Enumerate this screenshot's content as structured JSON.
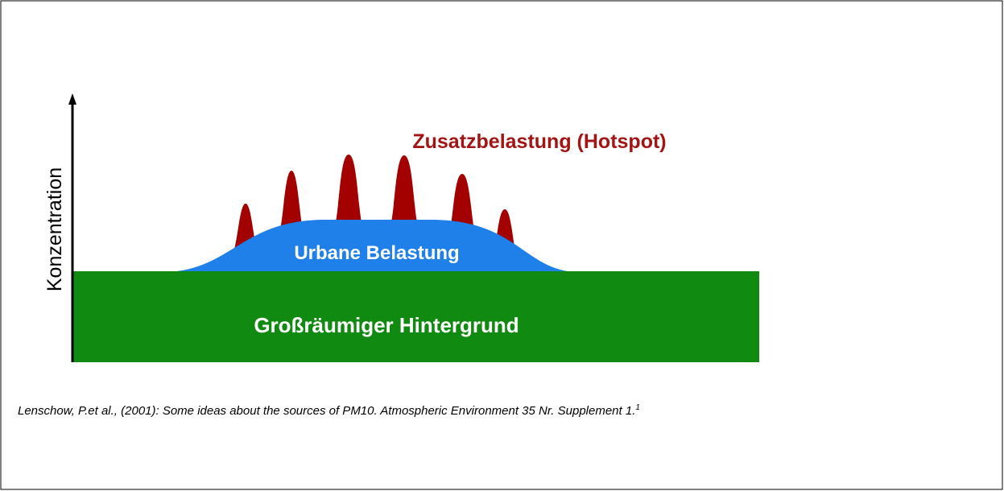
{
  "axis_label": "Konzentration",
  "layers": {
    "hotspot": "Zusatzbelastung (Hotspot)",
    "urban": "Urbane Belastung",
    "background": "Großräumiger Hintergrund"
  },
  "citation": {
    "text": "Lenschow, P.et al., (2001): Some ideas about the sources of PM10. Atmospheric Environment 35 Nr. Supplement 1.",
    "footnote": "1"
  }
}
